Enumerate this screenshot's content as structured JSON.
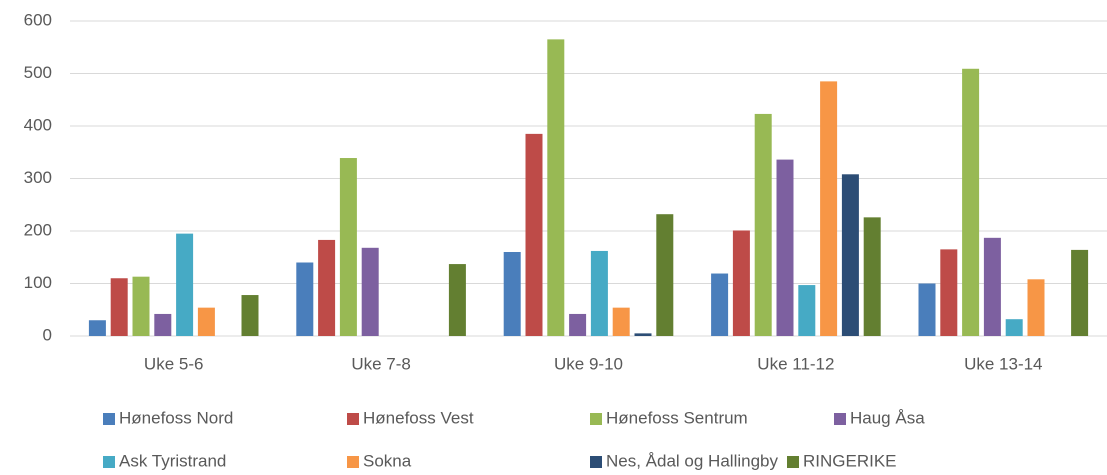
{
  "chart_data": {
    "type": "bar",
    "categories": [
      "Uke 5-6",
      "Uke 7-8",
      "Uke 9-10",
      "Uke 11-12",
      "Uke 13-14"
    ],
    "series": [
      {
        "name": "Hønefoss Nord",
        "color": "#4a7ebb",
        "values": [
          30,
          140,
          160,
          119,
          100
        ]
      },
      {
        "name": "Hønefoss Vest",
        "color": "#be4b48",
        "values": [
          110,
          183,
          385,
          201,
          165
        ]
      },
      {
        "name": "Hønefoss Sentrum",
        "color": "#98b954",
        "values": [
          113,
          339,
          565,
          423,
          509
        ]
      },
      {
        "name": "Haug Åsa",
        "color": "#7d60a0",
        "values": [
          42,
          168,
          42,
          336,
          187
        ]
      },
      {
        "name": "Ask Tyristrand",
        "color": "#46aac5",
        "values": [
          195,
          0,
          162,
          97,
          32
        ]
      },
      {
        "name": "Sokna",
        "color": "#f79646",
        "values": [
          54,
          0,
          54,
          485,
          108
        ]
      },
      {
        "name": "Nes, Ådal og Hallingby",
        "color": "#2c4d75",
        "values": [
          0,
          0,
          5,
          308,
          0
        ]
      },
      {
        "name": "RINGERIKE",
        "color": "#637f31",
        "values": [
          78,
          137,
          232,
          226,
          164
        ]
      }
    ],
    "ylim": [
      0,
      600
    ],
    "yticks": [
      0,
      100,
      200,
      300,
      400,
      500,
      600
    ],
    "grid": true,
    "legend": "bottom"
  }
}
